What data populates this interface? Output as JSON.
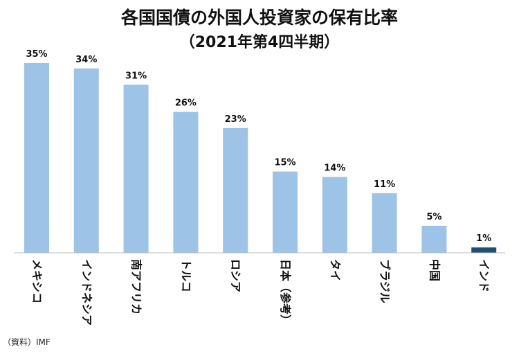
{
  "chart_data": {
    "type": "bar",
    "title": "各国国債の外国人投資家の保有比率",
    "subtitle": "（2021年第4四半期）",
    "categories": [
      "メキシコ",
      "インドネシア",
      "南アフリカ",
      "トルコ",
      "ロシア",
      "日本（参考）",
      "タイ",
      "ブラジル",
      "中国",
      "インド"
    ],
    "values": [
      35,
      34,
      31,
      26,
      23,
      15,
      14,
      11,
      5,
      1
    ],
    "value_labels": [
      "35%",
      "34%",
      "31%",
      "26%",
      "23%",
      "15%",
      "14%",
      "11%",
      "5%",
      "1%"
    ],
    "unit": "%",
    "ylim": [
      0,
      35
    ],
    "grid": false,
    "legend": "none",
    "xlabel": "",
    "ylabel": "",
    "bar_color": "#9DC3E6",
    "highlight_color": "#1F4E79",
    "highlight_category": "インド"
  },
  "source": "（資料）IMF"
}
